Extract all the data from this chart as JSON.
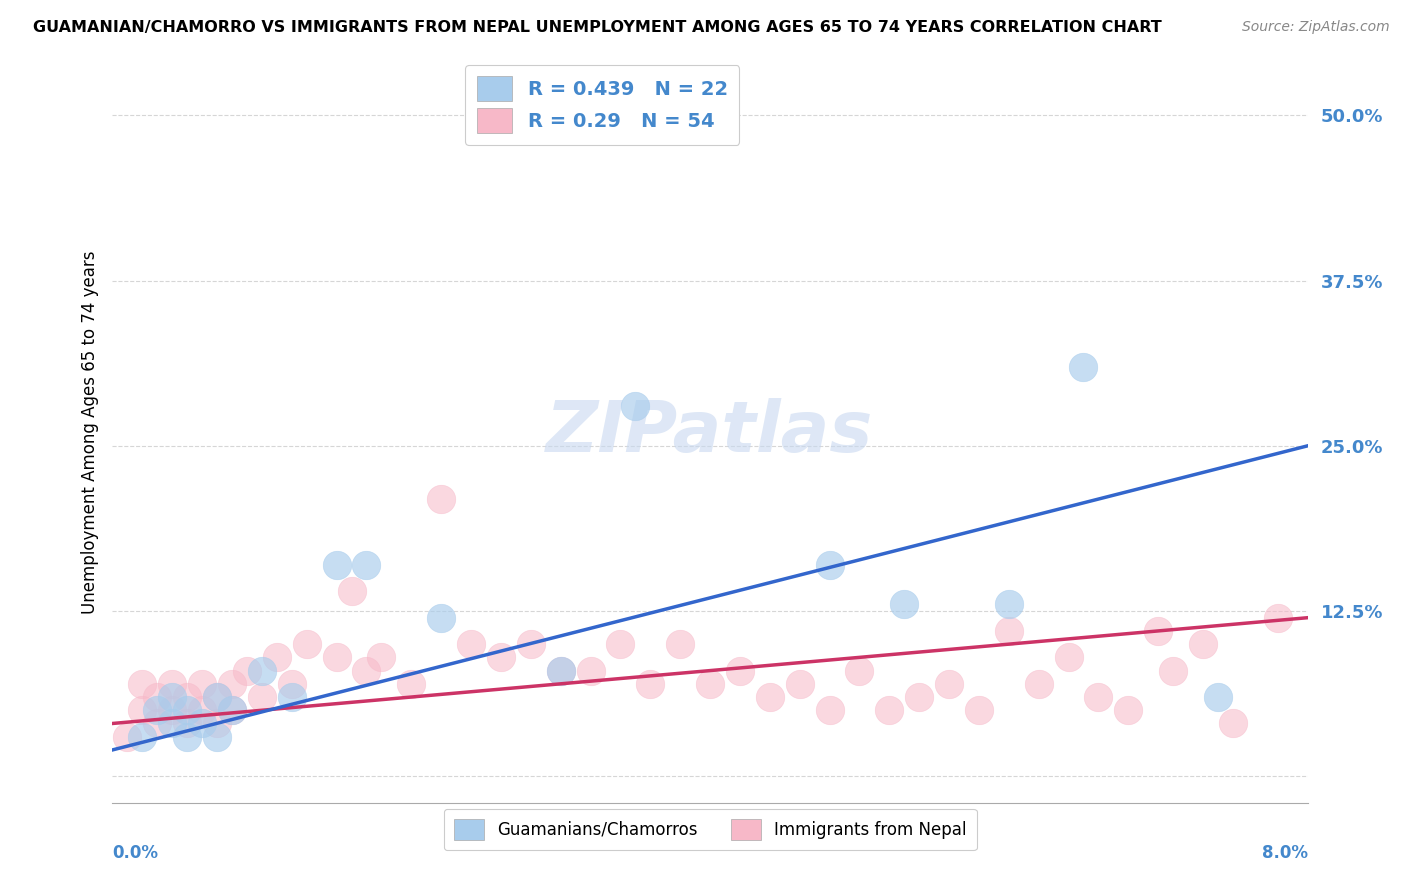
{
  "title": "GUAMANIAN/CHAMORRO VS IMMIGRANTS FROM NEPAL UNEMPLOYMENT AMONG AGES 65 TO 74 YEARS CORRELATION CHART",
  "source": "Source: ZipAtlas.com",
  "ylabel": "Unemployment Among Ages 65 to 74 years",
  "ytick_vals": [
    0.0,
    0.125,
    0.25,
    0.375,
    0.5
  ],
  "ytick_labels": [
    "",
    "12.5%",
    "25.0%",
    "37.5%",
    "50.0%"
  ],
  "xlim": [
    0.0,
    0.08
  ],
  "ylim": [
    -0.02,
    0.54
  ],
  "blue_R": 0.439,
  "blue_N": 22,
  "pink_R": 0.29,
  "pink_N": 54,
  "blue_color": "#A8CCEC",
  "pink_color": "#F7B8C8",
  "blue_line_color": "#3366CC",
  "pink_line_color": "#CC3366",
  "legend1": "Guamanians/Chamorros",
  "legend2": "Immigrants from Nepal",
  "watermark": "ZIPatlas",
  "background_color": "#FFFFFF",
  "grid_color": "#CCCCCC",
  "right_label_color": "#4488CC",
  "title_fontsize": 11.5,
  "source_fontsize": 10,
  "blue_x": [
    0.002,
    0.003,
    0.004,
    0.004,
    0.005,
    0.005,
    0.006,
    0.007,
    0.007,
    0.008,
    0.01,
    0.012,
    0.015,
    0.017,
    0.022,
    0.03,
    0.035,
    0.048,
    0.053,
    0.06,
    0.065,
    0.074
  ],
  "blue_y": [
    0.03,
    0.05,
    0.04,
    0.06,
    0.03,
    0.05,
    0.04,
    0.03,
    0.06,
    0.05,
    0.08,
    0.06,
    0.16,
    0.16,
    0.12,
    0.08,
    0.28,
    0.16,
    0.13,
    0.13,
    0.31,
    0.06
  ],
  "pink_x": [
    0.001,
    0.002,
    0.002,
    0.003,
    0.003,
    0.004,
    0.004,
    0.005,
    0.005,
    0.006,
    0.006,
    0.007,
    0.007,
    0.008,
    0.008,
    0.009,
    0.01,
    0.011,
    0.012,
    0.013,
    0.015,
    0.016,
    0.017,
    0.018,
    0.02,
    0.022,
    0.024,
    0.026,
    0.028,
    0.03,
    0.032,
    0.034,
    0.036,
    0.038,
    0.04,
    0.042,
    0.044,
    0.046,
    0.048,
    0.05,
    0.052,
    0.054,
    0.056,
    0.058,
    0.06,
    0.062,
    0.064,
    0.066,
    0.068,
    0.07,
    0.071,
    0.073,
    0.075,
    0.078
  ],
  "pink_y": [
    0.03,
    0.05,
    0.07,
    0.04,
    0.06,
    0.05,
    0.07,
    0.04,
    0.06,
    0.05,
    0.07,
    0.04,
    0.06,
    0.05,
    0.07,
    0.08,
    0.06,
    0.09,
    0.07,
    0.1,
    0.09,
    0.14,
    0.08,
    0.09,
    0.07,
    0.21,
    0.1,
    0.09,
    0.1,
    0.08,
    0.08,
    0.1,
    0.07,
    0.1,
    0.07,
    0.08,
    0.06,
    0.07,
    0.05,
    0.08,
    0.05,
    0.06,
    0.07,
    0.05,
    0.11,
    0.07,
    0.09,
    0.06,
    0.05,
    0.11,
    0.08,
    0.1,
    0.04,
    0.12
  ]
}
